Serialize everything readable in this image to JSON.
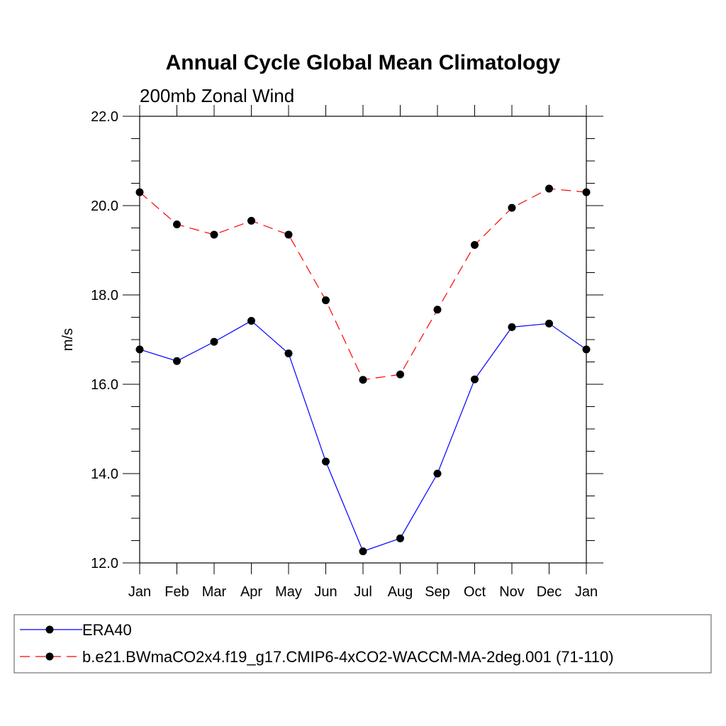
{
  "chart_data": {
    "type": "line",
    "title": "Annual Cycle Global Mean Climatology",
    "subtitle": "200mb Zonal Wind",
    "ylabel": "m/s",
    "xlabel": "",
    "categories": [
      "Jan",
      "Feb",
      "Mar",
      "Apr",
      "May",
      "Jun",
      "Jul",
      "Aug",
      "Sep",
      "Oct",
      "Nov",
      "Dec",
      "Jan"
    ],
    "ylim": [
      12.0,
      22.0
    ],
    "yticks": [
      "12.0",
      "14.0",
      "16.0",
      "18.0",
      "20.0",
      "22.0"
    ],
    "grid": false,
    "legend_position": "bottom",
    "series": [
      {
        "name": "ERA40",
        "color": "#0000ff",
        "dash": "solid",
        "marker": "filled-circle",
        "values": [
          16.78,
          16.52,
          16.95,
          17.42,
          16.69,
          14.27,
          12.26,
          12.55,
          14.0,
          16.11,
          17.28,
          17.36,
          16.78
        ]
      },
      {
        "name": "b.e21.BWmaCO2x4.f19_g17.CMIP6-4xCO2-WACCM-MA-2deg.001 (71-110)",
        "color": "#ff0000",
        "dash": "dashed",
        "marker": "filled-circle",
        "values": [
          20.3,
          19.58,
          19.35,
          19.66,
          19.35,
          17.88,
          16.1,
          16.22,
          17.67,
          19.12,
          19.95,
          20.38,
          20.3
        ]
      }
    ]
  }
}
